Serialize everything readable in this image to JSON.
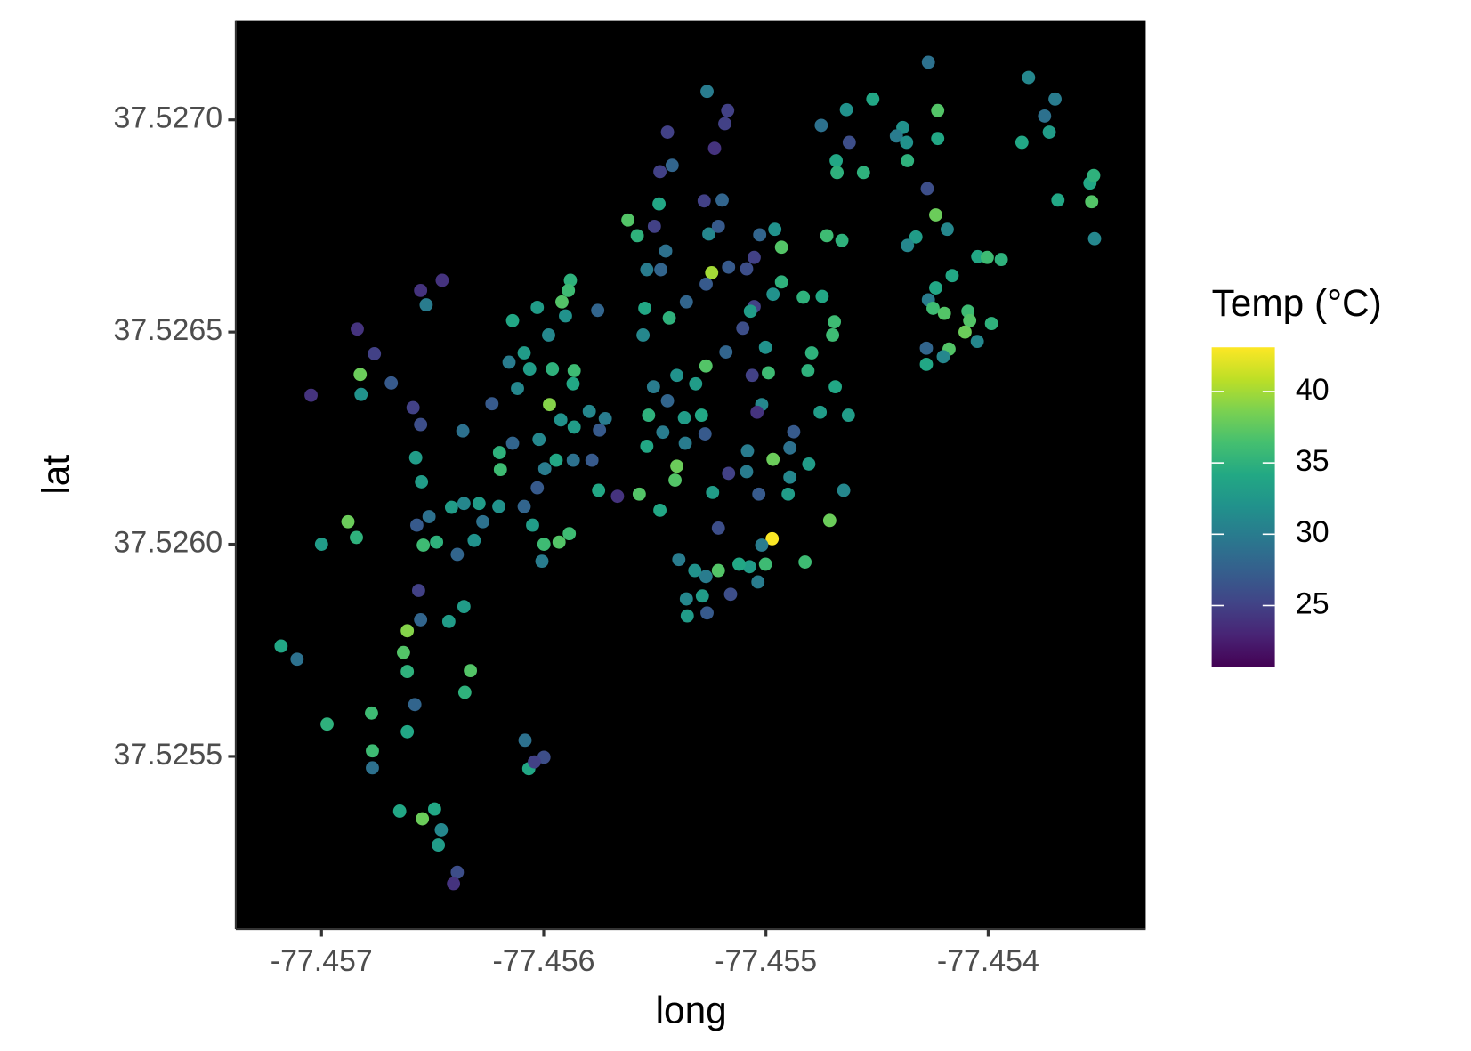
{
  "chart_data": {
    "type": "scatter",
    "x_label": "long",
    "y_label": "lat",
    "color_label": "Temp (°C)",
    "colormap": "viridis",
    "xlim": [
      -77.457386,
      -77.453291
    ],
    "xticks": [
      -77.457,
      -77.456,
      -77.455,
      -77.454
    ],
    "ylim": [
      37.525093,
      37.527233
    ],
    "yticks": [
      {
        "value": 37.527,
        "label": "37.5270"
      },
      37.5265,
      {
        "value": 37.526,
        "label": "37.5260"
      },
      37.5255
    ],
    "clim": [
      20.7,
      43.1
    ],
    "cticks": [
      25,
      30,
      35,
      40
    ],
    "x": [
      -77.457182,
      -77.45711,
      -77.456975,
      -77.457,
      -77.456881,
      -77.456843,
      -77.457047,
      -77.456839,
      -77.456826,
      -77.456762,
      -77.456686,
      -77.456822,
      -77.456554,
      -77.456457,
      -77.456529,
      -77.456588,
      -77.456554,
      -77.456576,
      -77.45655,
      -77.456571,
      -77.456542,
      -77.456563,
      -77.456554,
      -77.456614,
      -77.456631,
      -77.456614,
      -77.45658,
      -77.456614,
      -77.456775,
      -77.456771,
      -77.456771,
      -77.456648,
      -77.456546,
      -77.456491,
      -77.456461,
      -77.456474,
      -77.456389,
      -77.456406,
      -77.456427,
      -77.456359,
      -77.45633,
      -77.456355,
      -77.456389,
      -77.456482,
      -77.456516,
      -77.456415,
      -77.456359,
      -77.456291,
      -77.456274,
      -77.456313,
      -77.456364,
      -77.456084,
      -77.456067,
      -77.455999,
      -77.456042,
      -77.456202,
      -77.456088,
      -77.45605,
      -77.455999,
      -77.456008,
      -77.455931,
      -77.455885,
      -77.456029,
      -77.455995,
      -77.455944,
      -77.455867,
      -77.455783,
      -77.455753,
      -77.455668,
      -77.455749,
      -77.455795,
      -77.455723,
      -77.455863,
      -77.455923,
      -77.455974,
      -77.456021,
      -77.45614,
      -77.456199,
      -77.456195,
      -77.456233,
      -77.456118,
      -77.456063,
      -77.456156,
      -77.456088,
      -77.455961,
      -77.455863,
      -77.455868,
      -77.45614,
      -77.456029,
      -77.455978,
      -77.455918,
      -77.45588,
      -77.455889,
      -77.455902,
      -77.455757,
      -77.455621,
      -77.455579,
      -77.455481,
      -77.455502,
      -77.455451,
      -77.455536,
      -77.455473,
      -77.455422,
      -77.455477,
      -77.455443,
      -77.455265,
      -77.455172,
      -77.455185,
      -77.455231,
      -77.455278,
      -77.455197,
      -77.455257,
      -77.455214,
      -77.455545,
      -77.455553,
      -77.455435,
      -77.455358,
      -77.455244,
      -77.455269,
      -77.455168,
      -77.455087,
      -77.455053,
      -77.455028,
      -77.45496,
      -77.45493,
      -77.45493,
      -77.455053,
      -77.455104,
      -77.45518,
      -77.45527,
      -77.455316,
      -77.455401,
      -77.455506,
      -77.455528,
      -77.455443,
      -77.455367,
      -77.45529,
      -77.455274,
      -77.455363,
      -77.455464,
      -77.455536,
      -77.455401,
      -77.455409,
      -77.455477,
      -77.45557,
      -77.45524,
      -77.455214,
      -77.455168,
      -77.455083,
      -77.455087,
      -77.455032,
      -77.454968,
      -77.454892,
      -77.454875,
      -77.454892,
      -77.4549,
      -77.454807,
      -77.454756,
      -77.454688,
      -77.454629,
      -77.45465,
      -77.454713,
      -77.454972,
      -77.455019,
      -77.455002,
      -77.455074,
      -77.455121,
      -77.455036,
      -77.455159,
      -77.455214,
      -77.45527,
      -77.45532,
      -77.455392,
      -77.455358,
      -77.455265,
      -77.455286,
      -77.455354,
      -77.454824,
      -77.455019,
      -77.454989,
      -77.455002,
      -77.455062,
      -77.45504,
      -77.45507,
      -77.454968,
      -77.454832,
      -77.454747,
      -77.454811,
      -77.4547,
      -77.454692,
      -77.454794,
      -77.454726,
      -77.454658,
      -77.454751,
      -77.454638,
      -77.454625,
      -77.454684,
      -77.45468,
      -77.454561,
      -77.454519,
      -77.454384,
      -77.454413,
      -77.454367,
      -77.454363,
      -77.454269,
      -77.454227,
      -77.454227,
      -77.454274,
      -77.454236,
      -77.454325,
      -77.454363,
      -77.453818,
      -77.453699,
      -77.453746,
      -77.453725,
      -77.453848,
      -77.453686,
      -77.453542,
      -77.453525,
      -77.453534,
      -77.453521,
      -77.454047,
      -77.454004,
      -77.453941,
      -77.454162,
      -77.454236,
      -77.454269,
      -77.454248,
      -77.454197,
      -77.454091,
      -77.454083,
      -77.453985,
      -77.454104,
      -77.454049,
      -77.454176,
      -77.454202,
      -77.454278,
      -77.454278,
      -77.454184
    ],
    "y": [
      37.52576,
      37.525729,
      37.525576,
      37.526,
      37.526053,
      37.526016,
      37.526351,
      37.526507,
      37.5264,
      37.526449,
      37.52638,
      37.526353,
      37.526598,
      37.526622,
      37.526564,
      37.526322,
      37.526282,
      37.526204,
      37.526147,
      37.526045,
      37.525998,
      37.525891,
      37.525822,
      37.525796,
      37.525745,
      37.5257,
      37.525622,
      37.525558,
      37.525602,
      37.525513,
      37.525473,
      37.525371,
      37.525353,
      37.525376,
      37.525327,
      37.525291,
      37.525227,
      37.5252,
      37.525818,
      37.525853,
      37.525702,
      37.525651,
      37.525976,
      37.526005,
      37.526065,
      37.526087,
      37.526096,
      37.526096,
      37.526053,
      37.526009,
      37.526267,
      37.525538,
      37.525471,
      37.525498,
      37.525487,
      37.526089,
      37.526089,
      37.526045,
      37.526,
      37.52596,
      37.526005,
      37.526025,
      37.526133,
      37.526178,
      37.526198,
      37.526198,
      37.526198,
      37.526127,
      37.526113,
      37.526269,
      37.526313,
      37.526296,
      37.526276,
      37.526293,
      37.526329,
      37.526247,
      37.526238,
      37.526216,
      37.526176,
      37.526331,
      37.526367,
      37.526413,
      37.526429,
      37.526451,
      37.526413,
      37.526409,
      37.526378,
      37.526527,
      37.526558,
      37.526493,
      37.526571,
      37.526622,
      37.526598,
      37.526538,
      37.526551,
      37.526764,
      37.526727,
      37.526802,
      37.526749,
      37.526691,
      37.526647,
      37.526647,
      37.526893,
      37.526878,
      37.526971,
      37.527067,
      37.527022,
      37.526991,
      37.526933,
      37.526809,
      37.526811,
      37.526731,
      37.526749,
      37.526556,
      37.526493,
      37.526533,
      37.526571,
      37.52664,
      37.526613,
      37.526653,
      37.526649,
      37.526676,
      37.526729,
      37.526742,
      37.5267,
      37.526618,
      37.52656,
      37.526509,
      37.526453,
      37.52642,
      37.526378,
      37.526398,
      37.526371,
      37.526304,
      37.526338,
      37.526298,
      37.526304,
      37.52626,
      37.526238,
      37.526264,
      37.526231,
      37.526184,
      37.526151,
      37.52608,
      37.526118,
      37.526122,
      37.526038,
      37.526167,
      37.52622,
      37.526171,
      37.526118,
      37.5262,
      37.526227,
      37.526265,
      37.526158,
      37.526118,
      37.526189,
      37.526311,
      37.526371,
      37.526304,
      37.526127,
      37.526056,
      37.526013,
      37.525998,
      37.525953,
      37.525947,
      37.525953,
      37.525911,
      37.525882,
      37.525938,
      37.525924,
      37.525938,
      37.525964,
      37.525871,
      37.525838,
      37.525878,
      37.525831,
      37.525958,
      37.526329,
      37.526404,
      37.526464,
      37.526398,
      37.526311,
      37.526549,
      37.526589,
      37.526582,
      37.526584,
      37.526409,
      37.526493,
      37.526524,
      37.526451,
      37.526727,
      37.526716,
      37.526987,
      37.527024,
      37.526947,
      37.526904,
      37.526876,
      37.526876,
      37.527049,
      37.526982,
      37.526962,
      37.526947,
      37.526904,
      37.527136,
      37.527022,
      37.526956,
      37.526838,
      37.526776,
      37.526724,
      37.526704,
      37.5271,
      37.527049,
      37.527009,
      37.526971,
      37.526947,
      37.526811,
      37.526851,
      37.526869,
      37.526807,
      37.52672,
      37.526678,
      37.526676,
      37.526671,
      37.526633,
      37.526604,
      37.526576,
      37.526556,
      37.526544,
      37.526549,
      37.526527,
      37.52652,
      37.5265,
      37.526478,
      37.52646,
      37.526442,
      37.526462,
      37.526424,
      37.526742
    ],
    "color_values": [
      34,
      29,
      35,
      33,
      38,
      35,
      24,
      24,
      38,
      25,
      27,
      32,
      24,
      24,
      30,
      25,
      26,
      33,
      33,
      27,
      36,
      25,
      28,
      39,
      37,
      35,
      28,
      34,
      36,
      36,
      29,
      34,
      38,
      34,
      31,
      33,
      26,
      24,
      33,
      33,
      37,
      35,
      28,
      35,
      29,
      33,
      31,
      33,
      29,
      32,
      29,
      29,
      34,
      26,
      25,
      32,
      28,
      33,
      36,
      30,
      37,
      36,
      27,
      30,
      34,
      29,
      27,
      34,
      24,
      27,
      31,
      30,
      33,
      32,
      39,
      31,
      28,
      35,
      36,
      27,
      31,
      33,
      30,
      33,
      35,
      36,
      34,
      34,
      33,
      31,
      37,
      35,
      36,
      32,
      28,
      37,
      35,
      34,
      25,
      29,
      30,
      28,
      28,
      25,
      25,
      30,
      25,
      25,
      24,
      25,
      28,
      31,
      27,
      34,
      31,
      35,
      28,
      40,
      27,
      27,
      26,
      25,
      28,
      32,
      37,
      35,
      25,
      26,
      28,
      37,
      33,
      32,
      30,
      35,
      28,
      33,
      34,
      27,
      30,
      30,
      34,
      38,
      37,
      34,
      37,
      33,
      26,
      25,
      30,
      30,
      27,
      38,
      29,
      27,
      31,
      33,
      33,
      33,
      34,
      33,
      31,
      38,
      43,
      30,
      36,
      33,
      34,
      30,
      26,
      37,
      30,
      32,
      30,
      31,
      27,
      33,
      33,
      36,
      31,
      36,
      32,
      25,
      24,
      33,
      32,
      35,
      34,
      35,
      36,
      36,
      35,
      36,
      35,
      29,
      32,
      26,
      34,
      35,
      35,
      34,
      32,
      30,
      32,
      35,
      29,
      37,
      34,
      26,
      38,
      33,
      31,
      31,
      30,
      29,
      33,
      34,
      34,
      34,
      35,
      37,
      31,
      34,
      36,
      35,
      34,
      34,
      30,
      36,
      37,
      36,
      37,
      35,
      38,
      31,
      37,
      31,
      28,
      34,
      31
    ]
  }
}
